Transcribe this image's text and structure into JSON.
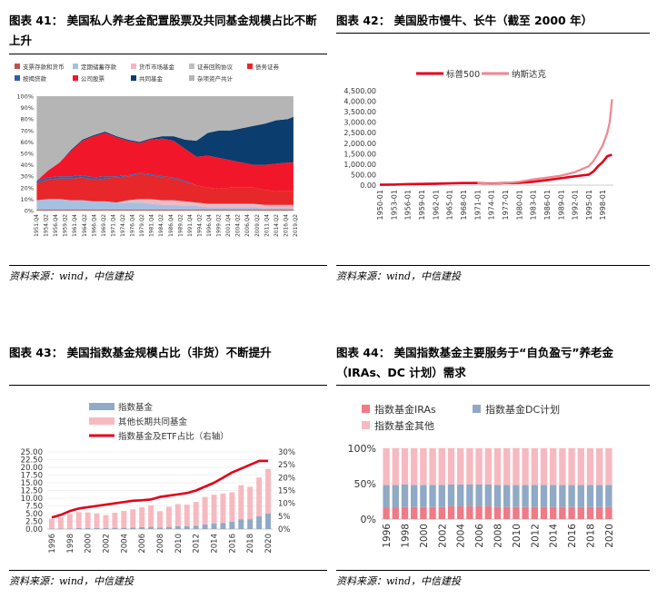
{
  "panels": {
    "c41": {
      "title": "图表 41： 美国私人养老金配置股票及共同基金规模占比不断上升",
      "source": "资料来源：wind，中信建投"
    },
    "c42": {
      "title": "图表 42： 美国股市慢牛、长牛（截至 2000 年）",
      "source": "资料来源：wind，中信建投"
    },
    "c43": {
      "title": "图表 43： 美国指数基金规模占比（非货）不断提升",
      "source": "资料来源：wind，中信建投"
    },
    "c44": {
      "title": "图表 44： 美国指数基金主要服务于“自负盈亏”养老金（IRAs、DC 计划）需求",
      "source": "资料来源：wind，中信建投"
    }
  },
  "chart_data": [
    {
      "id": "c41",
      "type": "area",
      "stacked": "percent",
      "x_ticks": [
        "1951.Q4",
        "1954.Q2",
        "1956.Q4",
        "1959.Q2",
        "1961.Q4",
        "1964.Q2",
        "1966.Q4",
        "1969.Q2",
        "1971.Q4",
        "1974.Q2",
        "1976.Q4",
        "1979.Q2",
        "1981.Q4",
        "1984.Q2",
        "1986.Q4",
        "1989.Q2",
        "1991.Q4",
        "1994.Q2",
        "1996.Q4",
        "1999.Q2",
        "2001.Q4",
        "2004.Q2",
        "2006.Q4",
        "2009.Q2",
        "2011.Q4",
        "2014.Q2",
        "2016.Q4",
        "2019.Q2"
      ],
      "y_ticks": [
        "0%",
        "10%",
        "20%",
        "30%",
        "40%",
        "50%",
        "60%",
        "70%",
        "80%",
        "90%",
        "100%"
      ],
      "ylim": [
        0,
        100
      ],
      "legend": [
        "支票存款和货币",
        "定期储蓄存款",
        "货币市场基金",
        "证券回购协议",
        "债务证券",
        "按揭贷款",
        "公司股票",
        "共同基金",
        "杂项资产共计"
      ],
      "colors": [
        "#c0504d",
        "#a6c1e0",
        "#f4b6c2",
        "#bfbfbf",
        "#e8272a",
        "#2e5fa8",
        "#f2162b",
        "#0b3d6e",
        "#b5b5b5"
      ],
      "x": [
        1952,
        1955,
        1958,
        1961,
        1964,
        1967,
        1970,
        1973,
        1976,
        1979,
        1982,
        1985,
        1988,
        1991,
        1994,
        1997,
        2000,
        2003,
        2006,
        2009,
        2012,
        2015,
        2018,
        2019.5
      ],
      "series": [
        {
          "values": [
            1,
            1,
            1,
            1,
            1,
            1,
            1,
            1,
            1,
            1,
            1,
            1,
            1,
            1,
            1,
            1,
            1,
            1,
            1,
            1,
            1,
            1,
            1,
            1
          ]
        },
        {
          "values": [
            8,
            9,
            9,
            8,
            8,
            7,
            7,
            6,
            6,
            6,
            5,
            4,
            4,
            3,
            3,
            2,
            2,
            2,
            2,
            2,
            1,
            1,
            1,
            1
          ]
        },
        {
          "values": [
            0,
            0,
            0,
            0,
            0,
            0,
            0,
            0,
            1,
            2,
            3,
            3,
            3,
            3,
            2,
            2,
            2,
            2,
            2,
            2,
            2,
            2,
            2,
            2
          ]
        },
        {
          "values": [
            0,
            0,
            0,
            0,
            0,
            0,
            0,
            0,
            1,
            1,
            1,
            1,
            1,
            1,
            1,
            1,
            1,
            1,
            1,
            1,
            1,
            1,
            1,
            1
          ]
        },
        {
          "values": [
            15,
            17,
            18,
            19,
            20,
            19,
            20,
            22,
            21,
            22,
            21,
            20,
            19,
            17,
            15,
            14,
            13,
            14,
            14,
            14,
            13,
            12,
            12,
            12
          ]
        },
        {
          "values": [
            2,
            2,
            2,
            2,
            2,
            2,
            2,
            1,
            1,
            1,
            1,
            1,
            1,
            1,
            0,
            0,
            0,
            0,
            0,
            0,
            0,
            0,
            0,
            0
          ]
        },
        {
          "values": [
            0,
            6,
            12,
            22,
            30,
            36,
            38,
            34,
            30,
            26,
            30,
            33,
            32,
            28,
            25,
            28,
            27,
            24,
            22,
            20,
            22,
            24,
            25,
            25
          ]
        },
        {
          "values": [
            0,
            0,
            0,
            1,
            1,
            1,
            1,
            1,
            1,
            1,
            1,
            2,
            4,
            8,
            14,
            20,
            24,
            26,
            30,
            34,
            36,
            38,
            38,
            40
          ]
        },
        {
          "values": [
            74,
            65,
            58,
            47,
            38,
            34,
            31,
            35,
            38,
            40,
            37,
            35,
            36,
            38,
            39,
            32,
            30,
            31,
            28,
            26,
            24,
            21,
            20,
            18
          ]
        }
      ]
    },
    {
      "id": "c42",
      "type": "line",
      "x_ticks": [
        "1950-01",
        "1953-01",
        "1956-01",
        "1959-01",
        "1962-01",
        "1965-01",
        "1968-01",
        "1971-01",
        "1974-01",
        "1977-01",
        "1980-01",
        "1983-01",
        "1986-01",
        "1989-01",
        "1992-01",
        "1995-01",
        "1998-01"
      ],
      "y_ticks": [
        "0.00",
        "500.00",
        "1,000.00",
        "1,500.00",
        "2,000.00",
        "2,500.00",
        "3,000.00",
        "3,500.00",
        "4,000.00",
        "4,500.00"
      ],
      "ylim": [
        0,
        4500
      ],
      "legend": [
        "标普500",
        "纳斯达克"
      ],
      "colors": [
        "#e3001b",
        "#f0868e"
      ],
      "series": [
        {
          "name": "标普500",
          "x": [
            1950,
            1953,
            1956,
            1959,
            1962,
            1965,
            1968,
            1971,
            1974,
            1977,
            1980,
            1983,
            1986,
            1989,
            1992,
            1995,
            1996,
            1997,
            1998,
            1999,
            2000
          ],
          "values": [
            17,
            25,
            45,
            58,
            68,
            86,
            100,
            100,
            70,
            98,
            110,
            160,
            240,
            330,
            420,
            500,
            650,
            900,
            1100,
            1380,
            1450
          ]
        },
        {
          "name": "纳斯达克",
          "x": [
            1971,
            1974,
            1977,
            1980,
            1983,
            1986,
            1989,
            1992,
            1995,
            1996,
            1997,
            1998,
            1999,
            1999.5,
            1999.8,
            2000
          ],
          "values": [
            100,
            60,
            100,
            160,
            270,
            360,
            450,
            620,
            900,
            1150,
            1500,
            1900,
            2500,
            3000,
            3600,
            4100
          ]
        }
      ]
    },
    {
      "id": "c43",
      "type": "bar",
      "categories": [
        "1996",
        "1997",
        "1998",
        "1999",
        "2000",
        "2001",
        "2002",
        "2003",
        "2004",
        "2005",
        "2006",
        "2007",
        "2008",
        "2009",
        "2010",
        "2011",
        "2012",
        "2013",
        "2014",
        "2015",
        "2016",
        "2017",
        "2018",
        "2019",
        "2020"
      ],
      "x_tick_labels": [
        "1996",
        "1998",
        "2000",
        "2002",
        "2004",
        "2006",
        "2008",
        "2010",
        "2012",
        "2014",
        "2016",
        "2018",
        "2020"
      ],
      "y_ticks": [
        "0.00",
        "2.50",
        "5.00",
        "7.50",
        "10.00",
        "12.50",
        "15.00",
        "17.50",
        "20.00",
        "22.50",
        "25.00"
      ],
      "y2_ticks": [
        "0%",
        "5%",
        "10%",
        "15%",
        "20%",
        "25%",
        "30%"
      ],
      "ylim": [
        0,
        25
      ],
      "y2lim": [
        0,
        30
      ],
      "legend": [
        "指数基金",
        "其他长期共同基金",
        "指数基金及ETF占比（右轴）"
      ],
      "colors": [
        "#8fa9c7",
        "#f7b9c0",
        "#e3001b"
      ],
      "series": [
        {
          "name": "指数基金",
          "values": [
            0.1,
            0.1,
            0.2,
            0.3,
            0.3,
            0.3,
            0.3,
            0.4,
            0.4,
            0.5,
            0.6,
            0.7,
            0.5,
            0.7,
            0.9,
            0.9,
            1.1,
            1.5,
            1.8,
            2.0,
            2.4,
            3.2,
            3.2,
            4.2,
            5.0
          ]
        },
        {
          "name": "其他长期共同基金",
          "values": [
            3.2,
            3.8,
            4.6,
            5.2,
            5.1,
            4.7,
            4.2,
            4.9,
            5.5,
            5.9,
            6.5,
            7.0,
            5.3,
            6.5,
            7.2,
            7.0,
            7.7,
            8.9,
            9.3,
            9.5,
            9.5,
            11.0,
            10.5,
            12.5,
            14.5
          ]
        },
        {
          "name": "指数基金及ETF占比（右轴）",
          "values": [
            4.5,
            5.5,
            7,
            8,
            8.5,
            9,
            9.5,
            10,
            10.5,
            11,
            11.2,
            11.5,
            12.5,
            13,
            13.5,
            14,
            15,
            16.5,
            18,
            20,
            22,
            23.5,
            25,
            26.5,
            26.5
          ]
        }
      ]
    },
    {
      "id": "c44",
      "type": "bar",
      "stacked": "percent",
      "categories": [
        "1996",
        "1997",
        "1998",
        "1999",
        "2000",
        "2001",
        "2002",
        "2003",
        "2004",
        "2005",
        "2006",
        "2007",
        "2008",
        "2009",
        "2010",
        "2011",
        "2012",
        "2013",
        "2014",
        "2015",
        "2016",
        "2017",
        "2018",
        "2019",
        "2020"
      ],
      "x_tick_labels": [
        "1996",
        "1998",
        "2000",
        "2002",
        "2004",
        "2006",
        "2008",
        "2010",
        "2012",
        "2014",
        "2016",
        "2018",
        "2020"
      ],
      "y_ticks": [
        "0%",
        "50%",
        "100%"
      ],
      "ylim": [
        0,
        100
      ],
      "legend": [
        "指数基金IRAs",
        "指数基金DC计划",
        "指数基金其他"
      ],
      "colors": [
        "#f07a85",
        "#8fa9c7",
        "#f7b9c0"
      ],
      "series": [
        {
          "name": "指数基金IRAs",
          "values": [
            16,
            16,
            17,
            17,
            17,
            17,
            17,
            18,
            18,
            18,
            18,
            18,
            17,
            17,
            17,
            17,
            17,
            17,
            17,
            17,
            17,
            17,
            17,
            17,
            17
          ]
        },
        {
          "name": "指数基金DC计划",
          "values": [
            32,
            32,
            32,
            31,
            31,
            31,
            31,
            31,
            31,
            31,
            31,
            31,
            31,
            31,
            31,
            31,
            31,
            31,
            31,
            31,
            31,
            31,
            31,
            31,
            31
          ]
        },
        {
          "name": "指数基金其他",
          "values": [
            52,
            52,
            51,
            52,
            52,
            52,
            52,
            51,
            51,
            51,
            51,
            51,
            52,
            52,
            52,
            52,
            52,
            52,
            52,
            52,
            52,
            52,
            52,
            52,
            52
          ]
        }
      ]
    }
  ]
}
